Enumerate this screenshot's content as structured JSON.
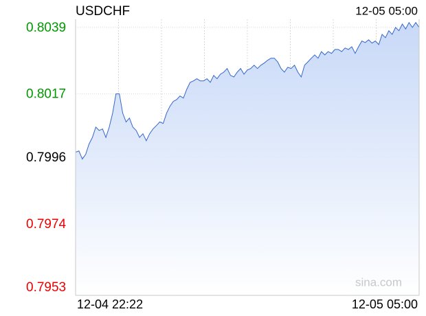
{
  "chart_data": {
    "type": "line",
    "title": "USDCHF",
    "timestamp": "12-05 05:00",
    "x_labels": [
      "12-04 22:22",
      "12-05 05:00"
    ],
    "watermark": "sina.com",
    "series": [
      {
        "name": "USDCHF",
        "color": "#3366cc",
        "values": [
          0.79977,
          0.79981,
          0.79954,
          0.7997,
          0.80004,
          0.80026,
          0.8006,
          0.80049,
          0.80054,
          0.80026,
          0.8006,
          0.80106,
          0.8017,
          0.8017,
          0.80106,
          0.80077,
          0.8009,
          0.8006,
          0.80049,
          0.80026,
          0.80038,
          0.80015,
          0.80038,
          0.80054,
          0.80065,
          0.80077,
          0.80072,
          0.80106,
          0.80129,
          0.80145,
          0.80151,
          0.80163,
          0.80156,
          0.80185,
          0.80208,
          0.80213,
          0.8022,
          0.80213,
          0.80213,
          0.8022,
          0.80208,
          0.80231,
          0.8022,
          0.80235,
          0.80242,
          0.80254,
          0.80231,
          0.80226,
          0.80242,
          0.80254,
          0.80235,
          0.80249,
          0.80254,
          0.80265,
          0.80254,
          0.80265,
          0.80272,
          0.80281,
          0.80288,
          0.80288,
          0.80276,
          0.80254,
          0.80242,
          0.80258,
          0.80254,
          0.80265,
          0.80242,
          0.80226,
          0.80265,
          0.80276,
          0.80288,
          0.80299,
          0.80288,
          0.8031,
          0.80299,
          0.8031,
          0.80304,
          0.80317,
          0.80317,
          0.8031,
          0.80322,
          0.80317,
          0.80326,
          0.80304,
          0.80326,
          0.80345,
          0.8034,
          0.80349,
          0.80338,
          0.80345,
          0.80333,
          0.80367,
          0.80356,
          0.80379,
          0.80367,
          0.8039,
          0.80379,
          0.80401,
          0.80385,
          0.80406,
          0.8039,
          0.80406,
          0.8039
        ]
      }
    ],
    "ylim": [
      0.79503,
      0.80417
    ],
    "yticks": [
      {
        "value": 0.8039,
        "label": "0.8039"
      },
      {
        "value": 0.8017,
        "label": "0.8017"
      },
      {
        "value": 0.7996,
        "label": "0.7996"
      },
      {
        "value": 0.7974,
        "label": "0.7974"
      },
      {
        "value": 0.7953,
        "label": "0.7953"
      }
    ],
    "baseline": 0.7996,
    "up_color": "#009900",
    "down_color": "#ee0000",
    "flat_color": "#000000",
    "fill_color": "#c5d7f7",
    "grid": true
  }
}
